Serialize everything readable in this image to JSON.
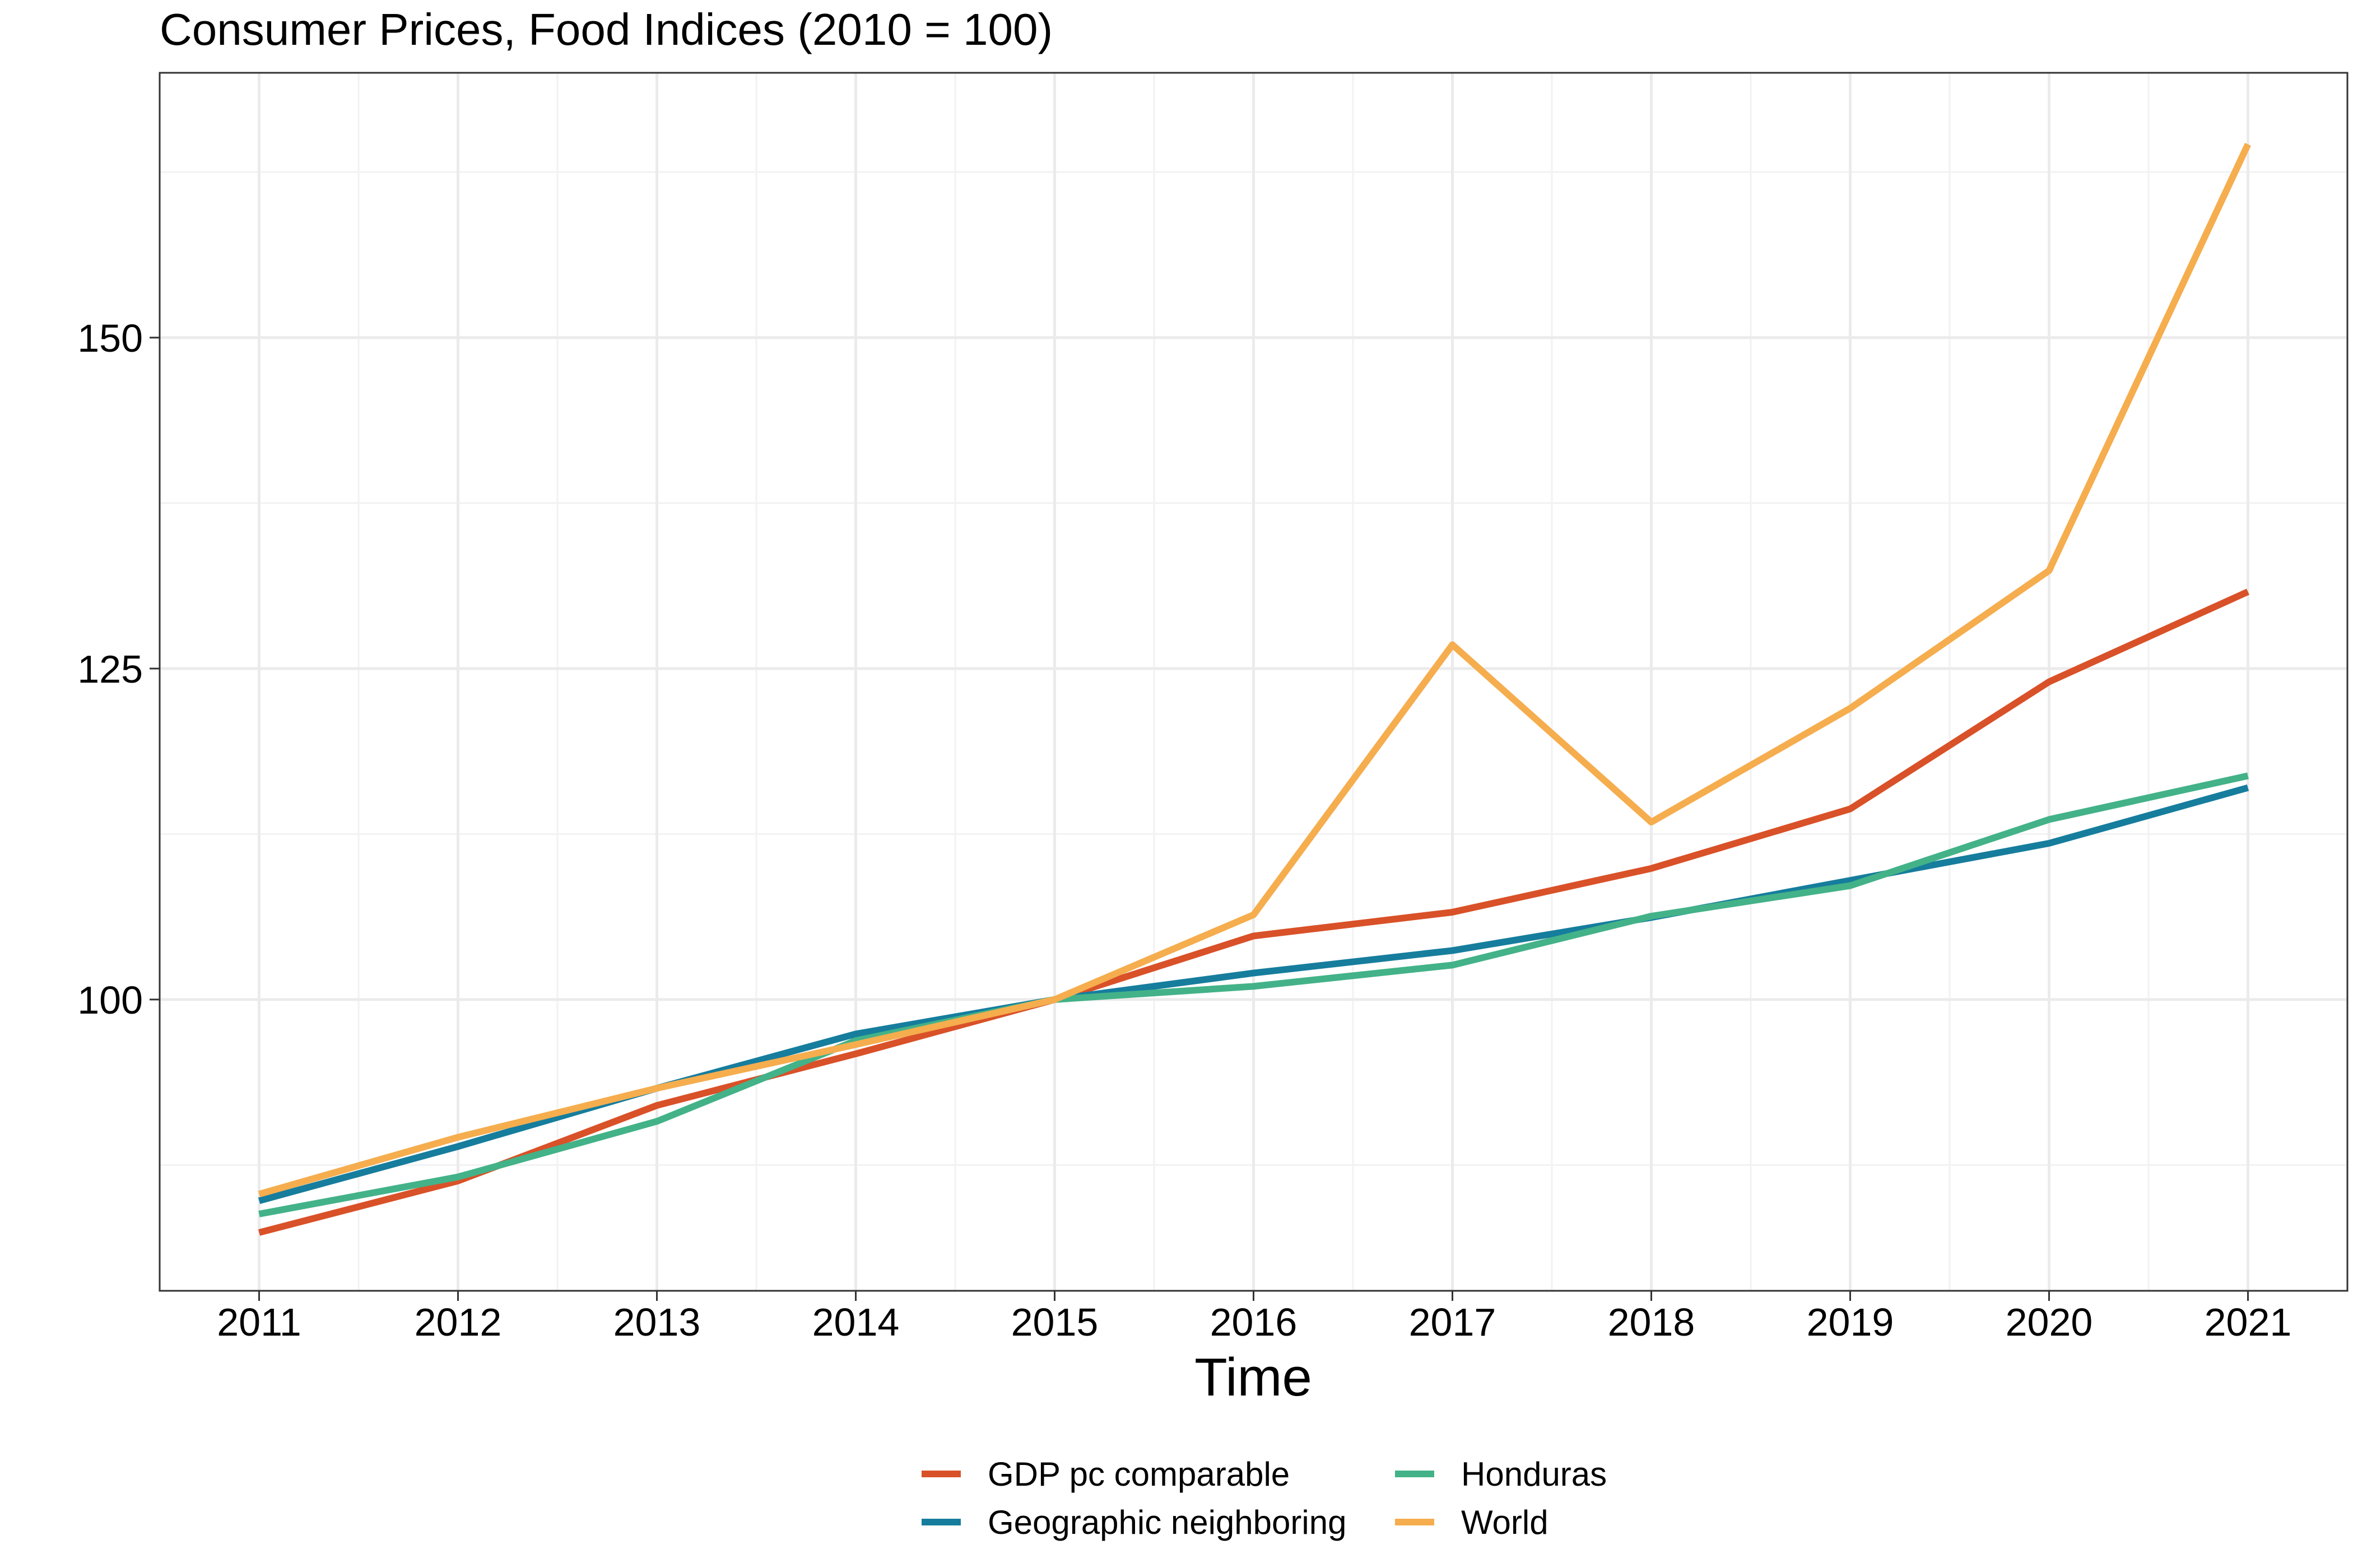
{
  "chart_data": {
    "type": "line",
    "title": "Consumer Prices, Food Indices (2010 = 100)",
    "xlabel": "Time",
    "ylabel": "",
    "x": [
      2011,
      2012,
      2013,
      2014,
      2015,
      2016,
      2017,
      2018,
      2019,
      2020,
      2021
    ],
    "xlim": [
      2010.5,
      2021.5
    ],
    "ylim": [
      78,
      170
    ],
    "y_ticks": [
      100,
      125,
      150
    ],
    "y_minor_ticks": [
      87.5,
      112.5,
      137.5,
      162.5
    ],
    "grid": true,
    "legend_position": "bottom",
    "series": [
      {
        "name": "GDP pc comparable",
        "color": "#D95128",
        "values": [
          82.4,
          86.3,
          92.0,
          95.9,
          100.0,
          104.8,
          106.6,
          109.9,
          114.4,
          124.0,
          130.8
        ]
      },
      {
        "name": "Geographic neighboring",
        "color": "#167D9D",
        "values": [
          84.8,
          88.9,
          93.3,
          97.4,
          100.0,
          102.0,
          103.7,
          106.2,
          109.0,
          111.8,
          116.0
        ]
      },
      {
        "name": "Honduras",
        "color": "#43B288",
        "values": [
          83.8,
          86.6,
          90.8,
          96.9,
          100.0,
          101.0,
          102.6,
          106.3,
          108.6,
          113.6,
          116.9
        ]
      },
      {
        "name": "World",
        "color": "#F5AD4E",
        "values": [
          85.3,
          89.6,
          93.3,
          96.6,
          100.0,
          106.4,
          126.8,
          113.4,
          122.0,
          132.4,
          164.6
        ]
      }
    ]
  }
}
